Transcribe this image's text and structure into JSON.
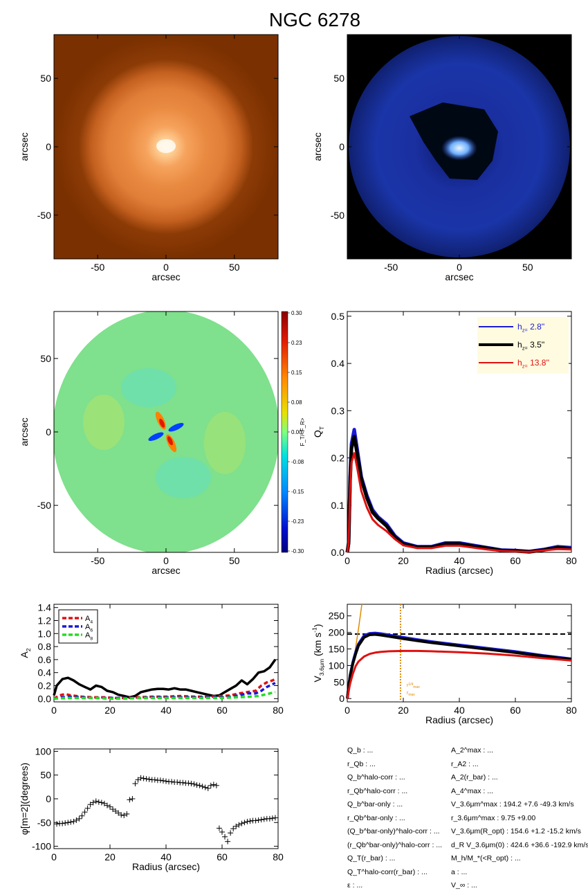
{
  "figure_title": "NGC 6278",
  "colors": {
    "blue": "#1a1ad6",
    "black": "#000000",
    "red": "#e01010",
    "green": "#22dd22",
    "orange": "#e08a00",
    "legend_bg": "#fffbe0"
  },
  "colorbar": {
    "label": "F_T/<F_R>",
    "ticks": [
      "0.30",
      "0.23",
      "0.15",
      "0.08",
      "0.00",
      "-0.08",
      "-0.15",
      "-0.23",
      "-0.30"
    ]
  },
  "annotations": {
    "r_max_label": "r^{1/4}_{max}, r_{max}",
    "panel5_hline": 195,
    "panel5_vline": 19
  },
  "params_left": [
    "Q_b : ...",
    "r_Qb : ...",
    "Q_b^halo-corr : ...",
    "r_Qb^halo-corr : ...",
    "Q_b^bar-only : ...",
    "r_Qb^bar-only : ...",
    "(Q_b^bar-only)^halo-corr : ...",
    "(r_Qb^bar-only)^halo-corr : ...",
    "Q_T(r_bar) : ...",
    "Q_T^halo-corr(r_bar) : ...",
    "ε : ..."
  ],
  "params_right": [
    "A_2^max : ...",
    "r_A2 : ...",
    "A_2(r_bar) : ...",
    "A_4^max : ...",
    "V_3.6μm^max : 194.2 +7.6 -49.3 km/s",
    "r_3.6μm^max : 9.75 +9.00",
    "V_3.6μm(R_opt) : 154.6 +1.2 -15.2 km/s",
    "d_R V_3.6μm(0) : 424.6 +36.6 -192.9 km/s/kpc",
    "M_h/M_*(<R_opt) : ...",
    "a : ...",
    "V_∞ : ..."
  ],
  "chart_data": [
    {
      "type": "heatmap",
      "panel": "image",
      "xlabel": "arcsec",
      "ylabel": "arcsec",
      "xlim": [
        -82,
        82
      ],
      "ylim": [
        -82,
        82
      ],
      "xticks": [
        -50,
        0,
        50
      ],
      "yticks": [
        -50,
        0,
        50
      ],
      "colormap": "orange"
    },
    {
      "type": "heatmap",
      "panel": "residual",
      "xlabel": "arcsec",
      "ylabel": "arcsec",
      "xlim": [
        -82,
        82
      ],
      "ylim": [
        -82,
        82
      ],
      "xticks": [
        -50,
        0,
        50
      ],
      "yticks": [
        -50,
        0,
        50
      ],
      "colormap": "blue"
    },
    {
      "type": "heatmap",
      "panel": "force-ratio-map",
      "xlabel": "arcsec",
      "ylabel": "arcsec",
      "xlim": [
        -82,
        82
      ],
      "ylim": [
        -82,
        82
      ],
      "xticks": [
        -50,
        0,
        50
      ],
      "yticks": [
        -50,
        0,
        50
      ],
      "colormap": "rainbow"
    },
    {
      "type": "line",
      "panel": "qt",
      "xlabel": "Radius (arcsec)",
      "ylabel": "Q_T",
      "xlim": [
        0,
        80
      ],
      "ylim": [
        0,
        0.51
      ],
      "xticks": [
        0,
        20,
        40,
        60,
        80
      ],
      "yticks": [
        0.0,
        0.1,
        0.2,
        0.3,
        0.4,
        0.5
      ],
      "legend": "top-right",
      "series": [
        {
          "name": "h_z= 2.8''",
          "color": "blue",
          "x": [
            0,
            0.5,
            1,
            1.5,
            2.5,
            3.5,
            5,
            7,
            9,
            11,
            14,
            17,
            20,
            25,
            30,
            35,
            40,
            45,
            50,
            55,
            60,
            65,
            70,
            75,
            80
          ],
          "y": [
            0,
            0.02,
            0.16,
            0.23,
            0.26,
            0.22,
            0.16,
            0.12,
            0.09,
            0.075,
            0.06,
            0.035,
            0.02,
            0.012,
            0.012,
            0.02,
            0.02,
            0.015,
            0.01,
            0.005,
            0.004,
            0.002,
            0.006,
            0.012,
            0.01
          ]
        },
        {
          "name": "h_z= 3.5''",
          "color": "black",
          "x": [
            0,
            0.5,
            1,
            1.5,
            2.5,
            3.5,
            5,
            7,
            9,
            11,
            14,
            17,
            20,
            25,
            30,
            35,
            40,
            45,
            50,
            55,
            60,
            65,
            70,
            75,
            80
          ],
          "y": [
            0,
            0.02,
            0.15,
            0.22,
            0.245,
            0.21,
            0.155,
            0.115,
            0.085,
            0.072,
            0.056,
            0.032,
            0.018,
            0.011,
            0.011,
            0.018,
            0.018,
            0.013,
            0.009,
            0.004,
            0.003,
            0.001,
            0.005,
            0.01,
            0.008
          ]
        },
        {
          "name": "h_z= 13.8''",
          "color": "red",
          "x": [
            0,
            0.5,
            1,
            1.5,
            2.5,
            3.5,
            5,
            7,
            9,
            11,
            14,
            17,
            20,
            25,
            30,
            35,
            40,
            45,
            50,
            55,
            60,
            65,
            70,
            75,
            80
          ],
          "y": [
            0,
            0.02,
            0.13,
            0.19,
            0.21,
            0.18,
            0.13,
            0.095,
            0.07,
            0.058,
            0.045,
            0.028,
            0.015,
            0.009,
            0.009,
            0.014,
            0.014,
            0.01,
            0.006,
            0.003,
            0.002,
            0.001,
            0.004,
            0.007,
            0.006
          ]
        }
      ]
    },
    {
      "type": "line",
      "panel": "a2",
      "xlabel": "",
      "ylabel": "A_2",
      "xlim": [
        0,
        80
      ],
      "ylim": [
        -0.05,
        1.45
      ],
      "xticks": [
        0,
        20,
        40,
        60,
        80
      ],
      "yticks": [
        0.0,
        0.2,
        0.4,
        0.6,
        0.8,
        1.0,
        1.2,
        1.4
      ],
      "legend": "top-left",
      "series": [
        {
          "color": "black",
          "dash": false,
          "x": [
            0,
            1,
            3,
            5,
            7,
            9,
            11,
            13,
            15,
            17,
            19,
            21,
            23,
            25,
            27,
            29,
            31,
            33,
            35,
            37,
            39,
            41,
            43,
            45,
            47,
            49,
            51,
            53,
            55,
            57,
            59,
            61,
            63,
            65,
            67,
            69,
            71,
            73,
            75,
            77,
            79
          ],
          "y": [
            0.05,
            0.2,
            0.3,
            0.32,
            0.28,
            0.22,
            0.18,
            0.14,
            0.2,
            0.18,
            0.12,
            0.1,
            0.06,
            0.04,
            0.02,
            0.04,
            0.1,
            0.12,
            0.14,
            0.15,
            0.15,
            0.14,
            0.16,
            0.14,
            0.14,
            0.12,
            0.1,
            0.08,
            0.06,
            0.04,
            0.05,
            0.1,
            0.15,
            0.2,
            0.28,
            0.22,
            0.3,
            0.4,
            0.42,
            0.48,
            0.6
          ]
        },
        {
          "name": "A_4",
          "color": "red",
          "dash": true,
          "x": [
            0,
            2,
            4,
            6,
            8,
            10,
            14,
            18,
            22,
            26,
            30,
            35,
            40,
            45,
            50,
            55,
            60,
            63,
            66,
            69,
            72,
            74,
            76,
            78,
            79
          ],
          "y": [
            0.0,
            0.05,
            0.07,
            0.05,
            0.04,
            0.03,
            0.02,
            0.02,
            0.01,
            0.01,
            0.02,
            0.03,
            0.03,
            0.04,
            0.03,
            0.03,
            0.04,
            0.05,
            0.08,
            0.1,
            0.12,
            0.2,
            0.25,
            0.28,
            0.3
          ]
        },
        {
          "name": "A_6",
          "color": "blue",
          "dash": true,
          "x": [
            0,
            3,
            6,
            10,
            14,
            18,
            22,
            26,
            30,
            35,
            40,
            45,
            50,
            55,
            60,
            63,
            66,
            69,
            72,
            74,
            76,
            78,
            79
          ],
          "y": [
            0.0,
            0.02,
            0.03,
            0.02,
            0.01,
            0.01,
            0.01,
            0.01,
            0.01,
            0.02,
            0.02,
            0.02,
            0.02,
            0.02,
            0.02,
            0.03,
            0.05,
            0.08,
            0.08,
            0.12,
            0.18,
            0.22,
            0.24
          ]
        },
        {
          "name": "A_8",
          "color": "green",
          "dash": true,
          "x": [
            0,
            5,
            10,
            15,
            20,
            25,
            30,
            35,
            40,
            45,
            50,
            55,
            60,
            65,
            70,
            73,
            75,
            77,
            79
          ],
          "y": [
            0.0,
            0.01,
            0.01,
            0.01,
            0.0,
            0.0,
            0.01,
            0.01,
            0.01,
            0.01,
            0.01,
            0.01,
            0.01,
            0.02,
            0.03,
            0.04,
            0.06,
            0.08,
            0.1
          ]
        }
      ]
    },
    {
      "type": "line",
      "panel": "vc",
      "xlabel": "Radius (arcsec)",
      "ylabel": "V_3.6μm (km s^-1)",
      "xlim": [
        0,
        80
      ],
      "ylim": [
        -10,
        285
      ],
      "xticks": [
        0,
        20,
        40,
        60,
        80
      ],
      "yticks": [
        0,
        50,
        100,
        150,
        200,
        250
      ],
      "series": [
        {
          "color": "orange",
          "dash": false,
          "x": [
            0,
            2,
            4,
            5.2
          ],
          "y": [
            0,
            100,
            210,
            285
          ]
        },
        {
          "color": "blue",
          "dash": false,
          "x": [
            0,
            1,
            2,
            3,
            4,
            6,
            8,
            10,
            12,
            15,
            20,
            25,
            30,
            40,
            50,
            60,
            70,
            80
          ],
          "y": [
            0,
            70,
            110,
            140,
            165,
            190,
            197,
            198,
            196,
            192,
            185,
            178,
            172,
            162,
            152,
            142,
            130,
            120
          ]
        },
        {
          "color": "black",
          "dash": false,
          "x": [
            0,
            1,
            2,
            3,
            4,
            6,
            8,
            10,
            12,
            15,
            20,
            25,
            30,
            40,
            50,
            60,
            70,
            80
          ],
          "y": [
            0,
            68,
            106,
            135,
            160,
            185,
            193,
            194,
            192,
            188,
            181,
            175,
            169,
            159,
            149,
            139,
            128,
            118
          ]
        },
        {
          "color": "red",
          "dash": false,
          "x": [
            0,
            1,
            2,
            3,
            4,
            6,
            8,
            10,
            12,
            15,
            20,
            25,
            30,
            40,
            50,
            60,
            70,
            80
          ],
          "y": [
            0,
            45,
            75,
            98,
            112,
            127,
            135,
            139,
            141,
            143,
            144,
            144,
            143,
            140,
            136,
            130,
            122,
            115
          ]
        }
      ]
    },
    {
      "type": "scatter",
      "panel": "phase",
      "xlabel": "Radius (arcsec)",
      "ylabel": "φ[m=2](degrees)",
      "xlim": [
        0,
        80
      ],
      "ylim": [
        -105,
        105
      ],
      "xticks": [
        0,
        20,
        40,
        60,
        80
      ],
      "yticks": [
        -100,
        -50,
        0,
        50,
        100
      ],
      "marker": "+",
      "x": [
        1,
        2,
        3,
        4,
        5,
        6,
        7,
        8,
        9,
        10,
        11,
        12,
        13,
        14,
        15,
        16,
        17,
        18,
        19,
        20,
        21,
        22,
        23,
        24,
        25,
        26,
        27,
        28,
        29,
        30,
        31,
        32,
        33,
        34,
        35,
        36,
        37,
        38,
        39,
        40,
        41,
        42,
        43,
        44,
        45,
        46,
        47,
        48,
        49,
        50,
        51,
        52,
        53,
        54,
        55,
        56,
        57,
        58,
        59,
        60,
        61,
        62,
        63,
        64,
        65,
        66,
        67,
        68,
        69,
        70,
        71,
        72,
        73,
        74,
        75,
        76,
        77,
        78,
        79
      ],
      "y": [
        -53,
        -52,
        -52,
        -51,
        -50,
        -49,
        -48,
        -45,
        -42,
        -36,
        -28,
        -20,
        -12,
        -8,
        -5,
        -7,
        -8,
        -10,
        -14,
        -17,
        -22,
        -26,
        -30,
        -34,
        -35,
        -32,
        -2,
        0,
        32,
        40,
        44,
        43,
        42,
        41,
        40,
        40,
        39,
        39,
        38,
        37,
        36,
        36,
        35,
        35,
        34,
        34,
        33,
        33,
        32,
        31,
        29,
        28,
        26,
        24,
        22,
        28,
        30,
        28,
        -62,
        -70,
        -80,
        -90,
        -72,
        -63,
        -58,
        -55,
        -52,
        -50,
        -48,
        -47,
        -46,
        -46,
        -45,
        -44,
        -43,
        -42,
        -42,
        -41,
        -40
      ]
    }
  ]
}
